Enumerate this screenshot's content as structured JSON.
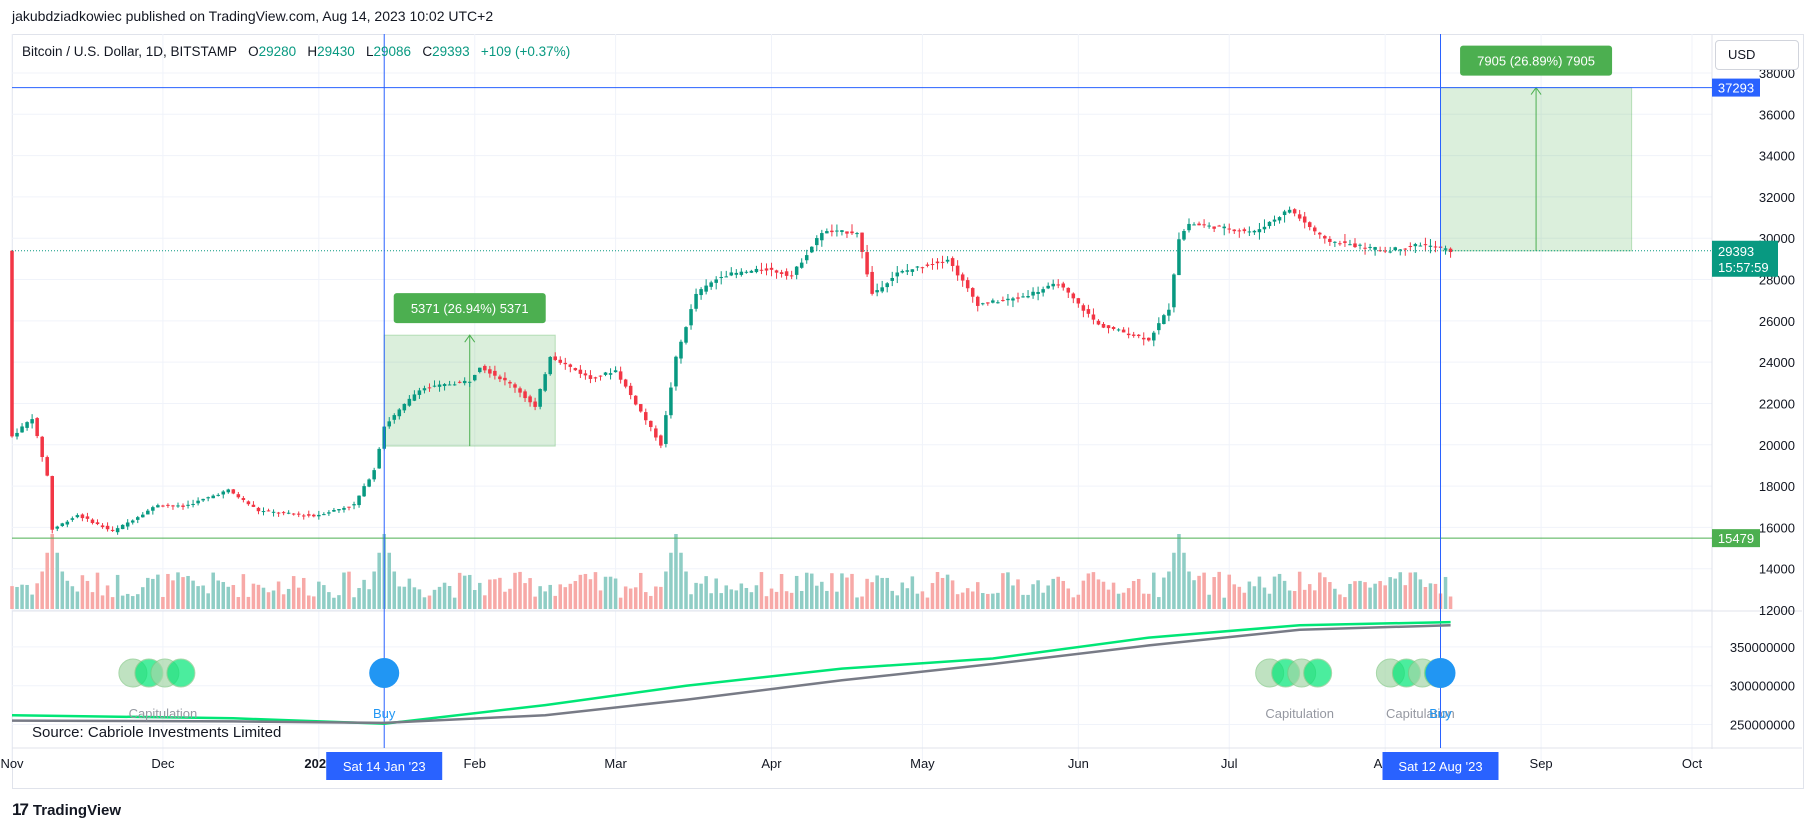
{
  "publisher_line": "jakubdziadkowiec published on TradingView.com, Aug 14, 2023 10:02 UTC+2",
  "symbol": {
    "name": "Bitcoin / U.S. Dollar, 1D, BITSTAMP",
    "o_label": "O",
    "o": "29280",
    "h_label": "H",
    "h": "29430",
    "l_label": "L",
    "l": "29086",
    "c_label": "C",
    "c": "29393",
    "change": "+109 (+0.37%)"
  },
  "currency": "USD",
  "source_label": "Source: Cabriole Investments Limited",
  "brand": "TradingView",
  "colors": {
    "up": "#089981",
    "down": "#f23645",
    "up_vol": "#8fcdc5",
    "down_vol": "#f7a9a7",
    "blue": "#2962ff",
    "green_label": "#4caf50",
    "indicator_bright": "#00e676",
    "indicator_gray": "#787b86"
  },
  "chart_data": [
    {
      "type": "candlestick",
      "title": "Bitcoin / U.S. Dollar, 1D, BITSTAMP",
      "ylim": [
        12000,
        39500
      ],
      "y_ticks": [
        12000,
        14000,
        16000,
        18000,
        20000,
        22000,
        24000,
        26000,
        28000,
        30000,
        32000,
        34000,
        36000,
        38000
      ],
      "x_labels": [
        "Nov",
        "Dec",
        "2023",
        "Feb",
        "Mar",
        "Apr",
        "May",
        "Jun",
        "Jul",
        "Aug",
        "Sep",
        "Oct"
      ],
      "x_label_dates": [
        "2022-11-01",
        "2022-12-01",
        "2023-01-01",
        "2023-02-01",
        "2023-03-01",
        "2023-04-01",
        "2023-05-01",
        "2023-06-01",
        "2023-07-01",
        "2023-08-01",
        "2023-09-01",
        "2023-10-01"
      ],
      "x_range": [
        "2022-11-01",
        "2023-10-01"
      ],
      "price_path": [
        [
          "2022-11-01",
          20400
        ],
        [
          "2022-11-05",
          21300
        ],
        [
          "2022-11-08",
          18500
        ],
        [
          "2022-11-09",
          15900
        ],
        [
          "2022-11-14",
          16600
        ],
        [
          "2022-11-21",
          15800
        ],
        [
          "2022-11-30",
          17100
        ],
        [
          "2022-12-05",
          17000
        ],
        [
          "2022-12-14",
          17800
        ],
        [
          "2022-12-20",
          16800
        ],
        [
          "2022-12-31",
          16550
        ],
        [
          "2023-01-08",
          17100
        ],
        [
          "2023-01-12",
          18800
        ],
        [
          "2023-01-14",
          20900
        ],
        [
          "2023-01-21",
          22700
        ],
        [
          "2023-01-31",
          23100
        ],
        [
          "2023-02-02",
          23800
        ],
        [
          "2023-02-09",
          22800
        ],
        [
          "2023-02-13",
          21800
        ],
        [
          "2023-02-16",
          24300
        ],
        [
          "2023-02-24",
          23200
        ],
        [
          "2023-03-01",
          23600
        ],
        [
          "2023-03-09",
          20400
        ],
        [
          "2023-03-10",
          20000
        ],
        [
          "2023-03-13",
          24200
        ],
        [
          "2023-03-17",
          27300
        ],
        [
          "2023-03-22",
          28200
        ],
        [
          "2023-03-31",
          28500
        ],
        [
          "2023-04-05",
          28200
        ],
        [
          "2023-04-11",
          30300
        ],
        [
          "2023-04-18",
          30300
        ],
        [
          "2023-04-21",
          27300
        ],
        [
          "2023-04-26",
          28300
        ],
        [
          "2023-05-06",
          29000
        ],
        [
          "2023-05-12",
          26800
        ],
        [
          "2023-05-20",
          27100
        ],
        [
          "2023-05-28",
          27800
        ],
        [
          "2023-06-05",
          25800
        ],
        [
          "2023-06-15",
          25100
        ],
        [
          "2023-06-19",
          26600
        ],
        [
          "2023-06-21",
          30000
        ],
        [
          "2023-06-23",
          30700
        ],
        [
          "2023-07-06",
          30300
        ],
        [
          "2023-07-13",
          31400
        ],
        [
          "2023-07-20",
          29900
        ],
        [
          "2023-08-01",
          29400
        ],
        [
          "2023-08-08",
          29700
        ],
        [
          "2023-08-14",
          29393
        ]
      ],
      "volume_peaks_dates": [
        "2022-11-09",
        "2023-01-14",
        "2023-03-13",
        "2023-06-21"
      ],
      "current_price": "29393",
      "countdown": "15:57:59",
      "horizontal_levels": [
        {
          "value": 37293,
          "label": "37293",
          "color": "#2962ff"
        },
        {
          "value": 15479,
          "label": "15479",
          "color": "#4caf50"
        }
      ],
      "vertical_markers": [
        {
          "date": "2023-01-14",
          "label": "Sat 14 Jan '23"
        },
        {
          "date": "2023-08-12",
          "label": "Sat 12 Aug '23"
        }
      ],
      "measure_boxes": [
        {
          "from_date": "2023-01-14",
          "to_date": "2023-02-17",
          "low": 19936,
          "high": 25307,
          "label": "5371 (26.94%) 5371"
        },
        {
          "from_date": "2023-08-12",
          "to_date": "2023-09-19",
          "low": 29388,
          "high": 37293,
          "label": "7905 (26.89%) 7905"
        }
      ]
    },
    {
      "type": "line",
      "title": "",
      "ylim": [
        230000000,
        395000000
      ],
      "y_ticks": [
        250000000,
        300000000,
        350000000
      ],
      "series": [
        {
          "color": "#00e676",
          "points": [
            [
              "2022-11-01",
              262000000
            ],
            [
              "2022-12-15",
              258000000
            ],
            [
              "2023-01-14",
              251000000
            ],
            [
              "2023-02-15",
              275000000
            ],
            [
              "2023-03-15",
              300000000
            ],
            [
              "2023-04-15",
              322000000
            ],
            [
              "2023-05-15",
              335000000
            ],
            [
              "2023-06-15",
              362000000
            ],
            [
              "2023-07-15",
              378000000
            ],
            [
              "2023-08-14",
              382000000
            ]
          ]
        },
        {
          "color": "#787b86",
          "points": [
            [
              "2022-11-01",
              255000000
            ],
            [
              "2022-12-15",
              254000000
            ],
            [
              "2023-01-14",
              252000000
            ],
            [
              "2023-02-15",
              262000000
            ],
            [
              "2023-03-15",
              282000000
            ],
            [
              "2023-04-15",
              307000000
            ],
            [
              "2023-05-15",
              328000000
            ],
            [
              "2023-06-15",
              352000000
            ],
            [
              "2023-07-15",
              372000000
            ],
            [
              "2023-08-14",
              378000000
            ]
          ]
        }
      ],
      "signal_labels": [
        {
          "date": "2022-12-01",
          "text": "Capitulation",
          "kind": "capitulation"
        },
        {
          "date": "2023-01-14",
          "text": "Buy",
          "kind": "buy"
        },
        {
          "date": "2023-07-15",
          "text": "Capitulation",
          "kind": "capitulation"
        },
        {
          "date": "2023-08-08",
          "text": "Capitulation",
          "kind": "capitulation"
        },
        {
          "date": "2023-08-12",
          "text": "Buy",
          "kind": "buy"
        }
      ]
    }
  ]
}
